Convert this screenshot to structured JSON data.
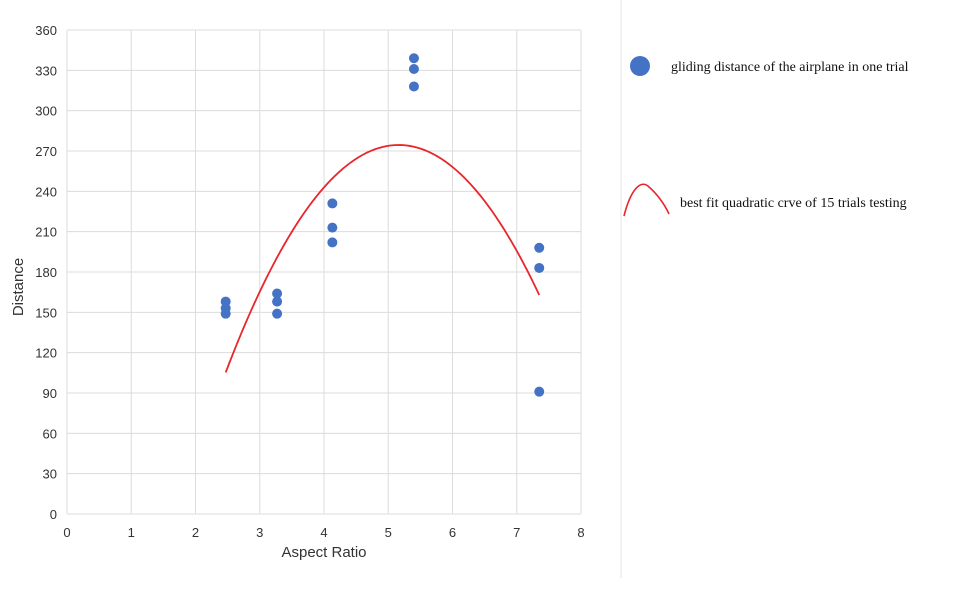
{
  "chart_data": {
    "type": "scatter",
    "xlabel": "Aspect Ratio",
    "ylabel": "Distance",
    "xlim": [
      0,
      8
    ],
    "ylim": [
      0,
      360
    ],
    "x_ticks": [
      "0",
      "1",
      "2",
      "3",
      "4",
      "5",
      "6",
      "7",
      "8"
    ],
    "y_ticks": [
      "0",
      "30",
      "60",
      "90",
      "120",
      "150",
      "180",
      "210",
      "240",
      "270",
      "300",
      "330",
      "360"
    ],
    "grid": true,
    "legend_position": "right",
    "series": [
      {
        "name": "gliding distance of the airplane in one trial",
        "kind": "scatter",
        "color": "#4472c4",
        "points": [
          [
            2.47,
            158
          ],
          [
            2.47,
            153
          ],
          [
            2.47,
            149
          ],
          [
            3.27,
            164
          ],
          [
            3.27,
            158
          ],
          [
            3.27,
            149
          ],
          [
            4.13,
            231
          ],
          [
            4.13,
            213
          ],
          [
            4.13,
            202
          ],
          [
            5.4,
            339
          ],
          [
            5.4,
            331
          ],
          [
            5.4,
            318
          ],
          [
            7.35,
            198
          ],
          [
            7.35,
            183
          ],
          [
            7.35,
            91
          ]
        ]
      },
      {
        "name": "best fit quadratic crve of 15 trials testing",
        "kind": "curve",
        "color": "#e8262b",
        "x_range": [
          2.47,
          7.35
        ],
        "coefficients": {
          "a": -23.33,
          "b": 240.9,
          "c": -347.4
        }
      }
    ]
  }
}
